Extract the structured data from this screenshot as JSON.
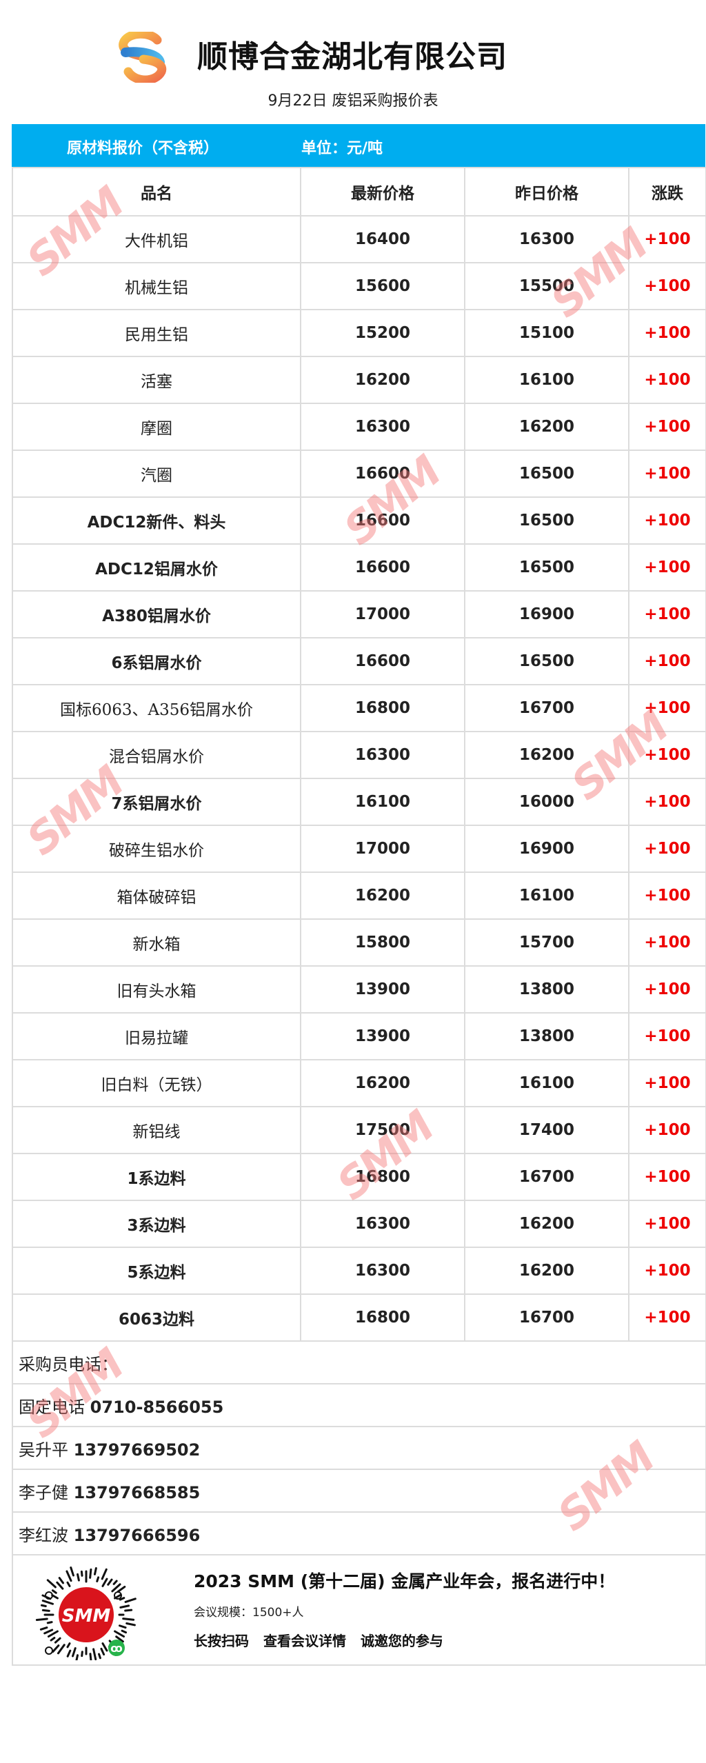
{
  "header": {
    "company": "顺博合金湖北有限公司",
    "subtitle": "9月22日 废铝采购报价表"
  },
  "bar": {
    "label": "原材料报价（不含税）",
    "unit": "单位：元/吨"
  },
  "table": {
    "columns": [
      "品名",
      "最新价格",
      "昨日价格",
      "涨跌"
    ],
    "rows": [
      {
        "name": "大件机铝",
        "latest": "16400",
        "yesterday": "16300",
        "change": "+100"
      },
      {
        "name": "机械生铝",
        "latest": "15600",
        "yesterday": "15500",
        "change": "+100"
      },
      {
        "name": "民用生铝",
        "latest": "15200",
        "yesterday": "15100",
        "change": "+100"
      },
      {
        "name": "活塞",
        "latest": "16200",
        "yesterday": "16100",
        "change": "+100"
      },
      {
        "name": "摩圈",
        "latest": "16300",
        "yesterday": "16200",
        "change": "+100"
      },
      {
        "name": "汽圈",
        "latest": "16600",
        "yesterday": "16500",
        "change": "+100"
      },
      {
        "name": "ADC12新件、料头",
        "latest": "16600",
        "yesterday": "16500",
        "change": "+100"
      },
      {
        "name": "ADC12铝屑水价",
        "latest": "16600",
        "yesterday": "16500",
        "change": "+100"
      },
      {
        "name": "A380铝屑水价",
        "latest": "17000",
        "yesterday": "16900",
        "change": "+100"
      },
      {
        "name": "6系铝屑水价",
        "latest": "16600",
        "yesterday": "16500",
        "change": "+100"
      },
      {
        "name": "国标6063、A356铝屑水价",
        "latest": "16800",
        "yesterday": "16700",
        "change": "+100"
      },
      {
        "name": "混合铝屑水价",
        "latest": "16300",
        "yesterday": "16200",
        "change": "+100"
      },
      {
        "name": "7系铝屑水价",
        "latest": "16100",
        "yesterday": "16000",
        "change": "+100"
      },
      {
        "name": "破碎生铝水价",
        "latest": "17000",
        "yesterday": "16900",
        "change": "+100"
      },
      {
        "name": "箱体破碎铝",
        "latest": "16200",
        "yesterday": "16100",
        "change": "+100"
      },
      {
        "name": "新水箱",
        "latest": "15800",
        "yesterday": "15700",
        "change": "+100"
      },
      {
        "name": "旧有头水箱",
        "latest": "13900",
        "yesterday": "13800",
        "change": "+100"
      },
      {
        "name": "旧易拉罐",
        "latest": "13900",
        "yesterday": "13800",
        "change": "+100"
      },
      {
        "name": "旧白料（无铁）",
        "latest": "16200",
        "yesterday": "16100",
        "change": "+100"
      },
      {
        "name": "新铝线",
        "latest": "17500",
        "yesterday": "17400",
        "change": "+100"
      },
      {
        "name": "1系边料",
        "latest": "16800",
        "yesterday": "16700",
        "change": "+100"
      },
      {
        "name": "3系边料",
        "latest": "16300",
        "yesterday": "16200",
        "change": "+100"
      },
      {
        "name": "5系边料",
        "latest": "16300",
        "yesterday": "16200",
        "change": "+100"
      },
      {
        "name": "6063边料",
        "latest": "16800",
        "yesterday": "16700",
        "change": "+100"
      }
    ]
  },
  "contacts": {
    "heading": "采购员电话：",
    "items": [
      {
        "label": "固定电话",
        "number": "0710-8566055"
      },
      {
        "label": "吴升平",
        "number": "13797669502"
      },
      {
        "label": "李子健",
        "number": "13797668585"
      },
      {
        "label": "李红波",
        "number": "13797666596"
      }
    ]
  },
  "footer": {
    "headline": "2023 SMM (第十二届) 金属产业年会，报名进行中！",
    "scale": "会议规模：1500+人",
    "cta": [
      "长按扫码",
      "查看会议详情",
      "诚邀您的参与"
    ],
    "qr_logo": "SMM"
  },
  "watermark": "SMM",
  "colors": {
    "bar": "#00adef",
    "change": "#ee0000",
    "watermark": "#f57878"
  }
}
